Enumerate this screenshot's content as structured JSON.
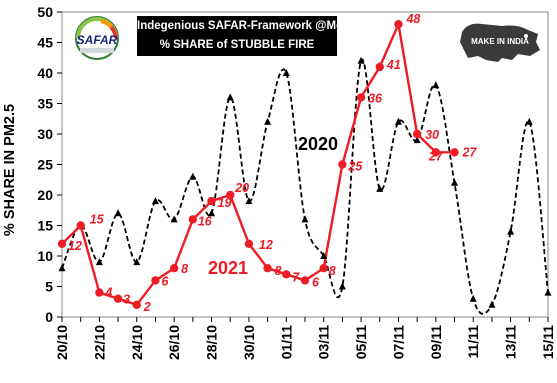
{
  "title": {
    "line1": "Indegenious SAFAR-Framework @MoES",
    "line2": "% SHARE of STUBBLE FIRE"
  },
  "logos": {
    "left_text": "SAFAR",
    "right_text": "MAKE IN INDIA"
  },
  "colors": {
    "series_2021": "#ee1c25",
    "series_2020": "#000000",
    "title_bg": "#000000"
  },
  "chart_data": {
    "type": "line",
    "title": "Indegenious SAFAR-Framework @MoES % SHARE of STUBBLE FIRE",
    "ylabel": "% SHARE IN PM2.5",
    "xlabel": "",
    "ylim": [
      0,
      50
    ],
    "yticks": [
      0,
      5,
      10,
      15,
      20,
      25,
      30,
      35,
      40,
      45,
      50
    ],
    "xticks": [
      "20/10",
      "22/10",
      "24/10",
      "26/10",
      "28/10",
      "30/10",
      "01/11",
      "03/11",
      "05/11",
      "07/11",
      "09/11",
      "11/11",
      "13/11",
      "15/11"
    ],
    "x": [
      "20/10",
      "21/10",
      "22/10",
      "23/10",
      "24/10",
      "25/10",
      "26/10",
      "27/10",
      "28/10",
      "29/10",
      "30/10",
      "31/10",
      "01/11",
      "02/11",
      "03/11",
      "04/11",
      "05/11",
      "06/11",
      "07/11",
      "08/11",
      "09/11",
      "10/11",
      "11/11",
      "12/11",
      "13/11",
      "14/11",
      "15/11"
    ],
    "grid": false,
    "series": [
      {
        "name": "2021",
        "style": "solid",
        "values": [
          12,
          15,
          4,
          3,
          2,
          6,
          8,
          16,
          19,
          20,
          12,
          8,
          7,
          6,
          8,
          25,
          36,
          41,
          48,
          30,
          27,
          27,
          null,
          null,
          null,
          null,
          null
        ],
        "data_labels": [
          12,
          15,
          4,
          3,
          2,
          6,
          8,
          16,
          19,
          20,
          12,
          8,
          7,
          6,
          8,
          25,
          36,
          41,
          48,
          30,
          27,
          27,
          null,
          null,
          null,
          null,
          null
        ]
      },
      {
        "name": "2020",
        "style": "dashed",
        "values": [
          8,
          15,
          9,
          17,
          9,
          19,
          16,
          23,
          17,
          36,
          19,
          32,
          40,
          16,
          10,
          5,
          42,
          21,
          32,
          29,
          38,
          22,
          3,
          2,
          14,
          32,
          4
        ]
      }
    ]
  }
}
